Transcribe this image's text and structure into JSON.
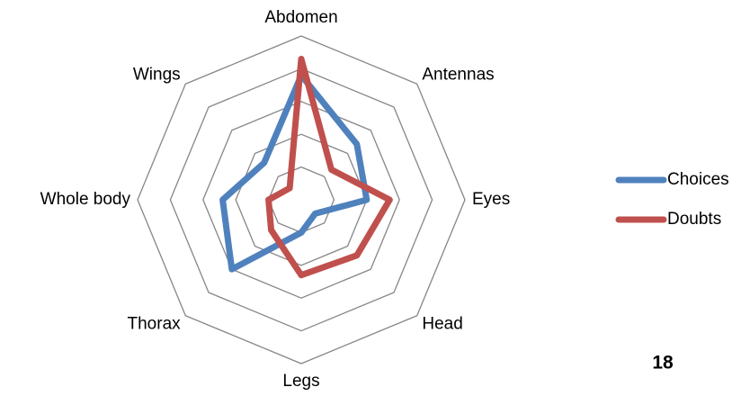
{
  "chart_data": {
    "type": "radar",
    "categories": [
      "Abdomen",
      "Antennas",
      "Eyes",
      "Head",
      "Legs",
      "Thorax",
      "Whole body",
      "Wings"
    ],
    "series": [
      {
        "name": "Choices",
        "color": "#4f81bd",
        "values": [
          3.8,
          2.4,
          2.0,
          0.6,
          1.0,
          3.0,
          2.4,
          1.6
        ]
      },
      {
        "name": "Doubts",
        "color": "#c0504d",
        "values": [
          4.3,
          1.3,
          2.7,
          2.4,
          2.3,
          1.3,
          1.0,
          0.5
        ]
      }
    ],
    "ylim": [
      0,
      5
    ],
    "yticks": [
      1,
      2,
      3,
      4,
      5
    ],
    "grid": true,
    "legend": "right",
    "annotation": "18"
  }
}
